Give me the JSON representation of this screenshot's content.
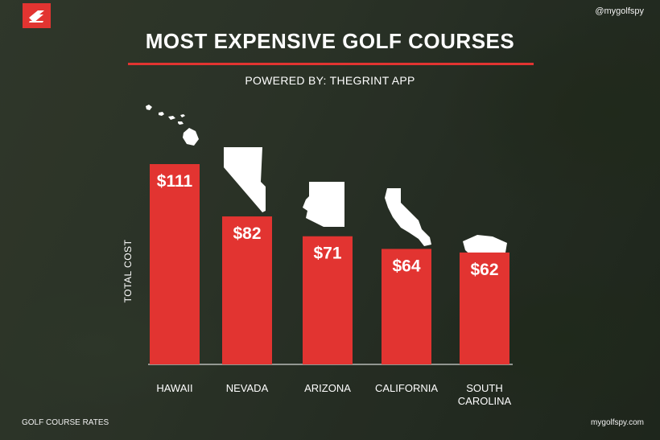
{
  "header": {
    "handle": "@mygolfspy",
    "title": "MOST EXPENSIVE GOLF COURSES",
    "subtitle": "POWERED BY: THEGRINT APP"
  },
  "footer": {
    "left": "GOLF COURSE RATES",
    "right": "mygolfspy.com"
  },
  "colors": {
    "accent": "#e23431",
    "text": "#ffffff"
  },
  "chart_data": {
    "type": "bar",
    "title": "MOST EXPENSIVE GOLF COURSES",
    "subtitle": "POWERED BY: THEGRINT APP",
    "xlabel": "",
    "ylabel": "TOTAL COST",
    "categories": [
      "HAWAII",
      "NEVADA",
      "ARIZONA",
      "CALIFORNIA",
      "SOUTH CAROLINA"
    ],
    "values": [
      111,
      82,
      71,
      64,
      62
    ],
    "value_labels": [
      "$111",
      "$82",
      "$71",
      "$64",
      "$62"
    ],
    "state_icons": [
      "hawaii-map-icon",
      "nevada-map-icon",
      "arizona-map-icon",
      "california-map-icon",
      "south-carolina-map-icon"
    ],
    "ylim": [
      0,
      111
    ],
    "grid": false,
    "legend": "none"
  }
}
